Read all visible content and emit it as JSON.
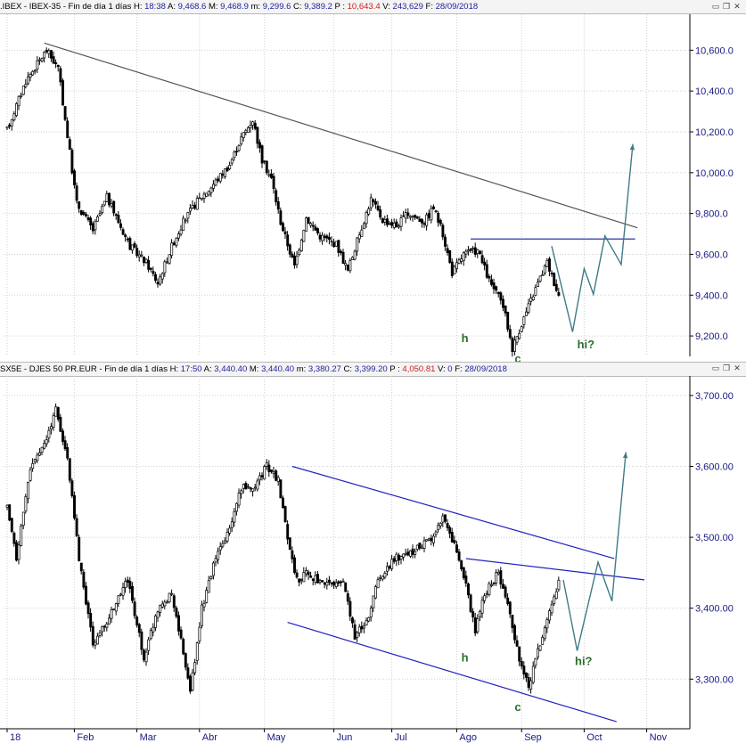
{
  "chart_data": [
    {
      "type": "candlestick",
      "header": {
        "name": ".IBEX - IBEX-35 - Fin de día 1 días",
        "fields": [
          {
            "label": "H:",
            "value": "18:38"
          },
          {
            "label": "A:",
            "value": "9,468.6"
          },
          {
            "label": "M:",
            "value": "9,468.9"
          },
          {
            "label": "m:",
            "value": "9,299.6"
          },
          {
            "label": "C:",
            "value": "9,389.2"
          },
          {
            "label": "P :",
            "value": "10,643.4",
            "red": true
          },
          {
            "label": "V:",
            "value": "243,629"
          },
          {
            "label": "F:",
            "value": "28/09/2018"
          }
        ]
      },
      "ylim": [
        9100,
        10750
      ],
      "yticks": [
        {
          "v": 9200,
          "label": "9,200.0"
        },
        {
          "v": 9400,
          "label": "9,400.0"
        },
        {
          "v": 9600,
          "label": "9,600.0"
        },
        {
          "v": 9800,
          "label": "9,800.0"
        },
        {
          "v": 10000,
          "label": "10,000.0"
        },
        {
          "v": 10200,
          "label": "10,200.0"
        },
        {
          "v": 10400,
          "label": "10,400.0"
        },
        {
          "v": 10600,
          "label": "10,600.0"
        }
      ],
      "path_days": [
        [
          0,
          10210
        ],
        [
          8,
          10450
        ],
        [
          17,
          10600
        ],
        [
          22,
          10510
        ],
        [
          30,
          9850
        ],
        [
          37,
          9720
        ],
        [
          43,
          9880
        ],
        [
          53,
          9640
        ],
        [
          60,
          9560
        ],
        [
          65,
          9460
        ],
        [
          71,
          9640
        ],
        [
          76,
          9760
        ],
        [
          82,
          9860
        ],
        [
          88,
          9930
        ],
        [
          96,
          10040
        ],
        [
          101,
          10170
        ],
        [
          106,
          10260
        ],
        [
          110,
          10060
        ],
        [
          114,
          9970
        ],
        [
          118,
          9760
        ],
        [
          124,
          9540
        ],
        [
          129,
          9780
        ],
        [
          135,
          9690
        ],
        [
          142,
          9650
        ],
        [
          147,
          9520
        ],
        [
          152,
          9700
        ],
        [
          157,
          9870
        ],
        [
          162,
          9770
        ],
        [
          168,
          9740
        ],
        [
          173,
          9800
        ],
        [
          180,
          9760
        ],
        [
          184,
          9830
        ],
        [
          188,
          9700
        ],
        [
          192,
          9510
        ],
        [
          197,
          9600
        ],
        [
          203,
          9620
        ],
        [
          208,
          9470
        ],
        [
          214,
          9350
        ],
        [
          218,
          9140
        ],
        [
          222,
          9260
        ],
        [
          229,
          9460
        ],
        [
          233,
          9560
        ],
        [
          238,
          9400
        ]
      ],
      "trendlines": [
        {
          "x": [
            16,
            272
          ],
          "y": [
            10635,
            9730
          ],
          "color": "#555555"
        },
        {
          "x": [
            200,
            271
          ],
          "y": [
            9675,
            9675
          ],
          "color": "#2832a8"
        }
      ],
      "projection": {
        "x": [
          235,
          244,
          249,
          253,
          258,
          265,
          270
        ],
        "y": [
          9640,
          9220,
          9530,
          9405,
          9690,
          9550,
          10140
        ],
        "color": "#3f7b86"
      },
      "annotations": [
        {
          "text": "h",
          "day": 196,
          "v": 9170
        },
        {
          "text": "c",
          "day": 219,
          "v": 9070
        },
        {
          "text": "hi?",
          "day": 246,
          "v": 9140
        }
      ]
    },
    {
      "type": "candlestick",
      "header": {
        "name": "SX5E - DJES 50 PR.EUR - Fin de día 1 días",
        "fields": [
          {
            "label": "H:",
            "value": "17:50"
          },
          {
            "label": "A:",
            "value": "3,440.40"
          },
          {
            "label": "M:",
            "value": "3,440.40"
          },
          {
            "label": "m:",
            "value": "3,380.27"
          },
          {
            "label": "C:",
            "value": "3,399.20"
          },
          {
            "label": "P :",
            "value": "4,050.81",
            "red": true
          },
          {
            "label": "V:",
            "value": "0"
          },
          {
            "label": "F:",
            "value": "28/09/2018"
          }
        ]
      },
      "ylim": [
        3230,
        3720
      ],
      "yticks": [
        {
          "v": 3300,
          "label": "3,300.00"
        },
        {
          "v": 3400,
          "label": "3,400.00"
        },
        {
          "v": 3500,
          "label": "3,500.00"
        },
        {
          "v": 3600,
          "label": "3,600.00"
        },
        {
          "v": 3700,
          "label": "3,700.00"
        }
      ],
      "path_days": [
        [
          0,
          3540
        ],
        [
          4,
          3470
        ],
        [
          10,
          3600
        ],
        [
          16,
          3630
        ],
        [
          21,
          3680
        ],
        [
          26,
          3610
        ],
        [
          31,
          3470
        ],
        [
          37,
          3350
        ],
        [
          43,
          3380
        ],
        [
          52,
          3440
        ],
        [
          59,
          3330
        ],
        [
          65,
          3400
        ],
        [
          71,
          3420
        ],
        [
          77,
          3320
        ],
        [
          79,
          3280
        ],
        [
          84,
          3400
        ],
        [
          90,
          3470
        ],
        [
          96,
          3510
        ],
        [
          101,
          3570
        ],
        [
          106,
          3570
        ],
        [
          112,
          3600
        ],
        [
          117,
          3580
        ],
        [
          121,
          3500
        ],
        [
          125,
          3440
        ],
        [
          130,
          3450
        ],
        [
          137,
          3430
        ],
        [
          145,
          3440
        ],
        [
          150,
          3360
        ],
        [
          155,
          3380
        ],
        [
          160,
          3440
        ],
        [
          167,
          3470
        ],
        [
          175,
          3480
        ],
        [
          183,
          3500
        ],
        [
          188,
          3530
        ],
        [
          193,
          3490
        ],
        [
          198,
          3430
        ],
        [
          202,
          3370
        ],
        [
          206,
          3420
        ],
        [
          212,
          3450
        ],
        [
          217,
          3390
        ],
        [
          221,
          3330
        ],
        [
          225,
          3290
        ],
        [
          230,
          3350
        ],
        [
          236,
          3420
        ],
        [
          240,
          3450
        ],
        [
          242,
          3400
        ]
      ],
      "trendlines": [
        {
          "x": [
            123,
            262
          ],
          "y": [
            3600,
            3470
          ],
          "color": "#2020c0"
        },
        {
          "x": [
            121,
            263
          ],
          "y": [
            3380,
            3240
          ],
          "color": "#2020c0"
        },
        {
          "x": [
            198,
            275
          ],
          "y": [
            3470,
            3440
          ],
          "color": "#2020c0"
        }
      ],
      "projection": {
        "x": [
          240,
          246,
          255,
          261,
          267
        ],
        "y": [
          3440,
          3340,
          3465,
          3410,
          3620
        ],
        "color": "#3f7b86"
      },
      "annotations": [
        {
          "text": "h",
          "day": 196,
          "v": 3325
        },
        {
          "text": "c",
          "day": 219,
          "v": 3255
        },
        {
          "text": "hi?",
          "day": 245,
          "v": 3320
        }
      ]
    }
  ],
  "xaxis": {
    "labels": [
      "18",
      "Feb",
      "Mar",
      "Abr",
      "May",
      "Jun",
      "Jul",
      "Ago",
      "Sep",
      "Oct",
      "Nov"
    ],
    "days": [
      0,
      29,
      56,
      83,
      111,
      141,
      166,
      194,
      222,
      249,
      276
    ]
  },
  "colors": {
    "candle": "#000000",
    "axis_text": "#1a1a80",
    "annotation": "#2c6e2c",
    "grid": "#d0d0d0"
  }
}
